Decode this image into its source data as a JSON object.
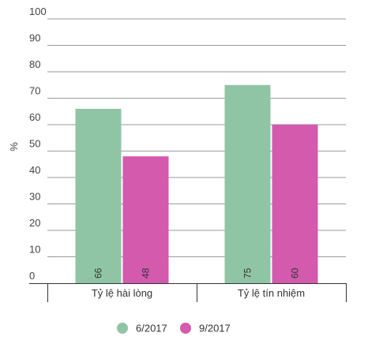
{
  "chart_data": {
    "type": "bar",
    "categories": [
      "Tỷ lệ hài lòng",
      "Tỷ lệ tín nhiệm"
    ],
    "series": [
      {
        "name": "6/2017",
        "values": [
          66,
          75
        ],
        "color": "#8fc5a5"
      },
      {
        "name": "9/2017",
        "values": [
          48,
          60
        ],
        "color": "#d35aad"
      }
    ],
    "ylabel": "%",
    "ylim": [
      0,
      100
    ],
    "yticks": [
      "0",
      "10",
      "20",
      "30",
      "40",
      "50",
      "60",
      "70",
      "80",
      "90",
      "100"
    ],
    "grid": true,
    "legend": "bottom-center",
    "data_labels": true
  }
}
